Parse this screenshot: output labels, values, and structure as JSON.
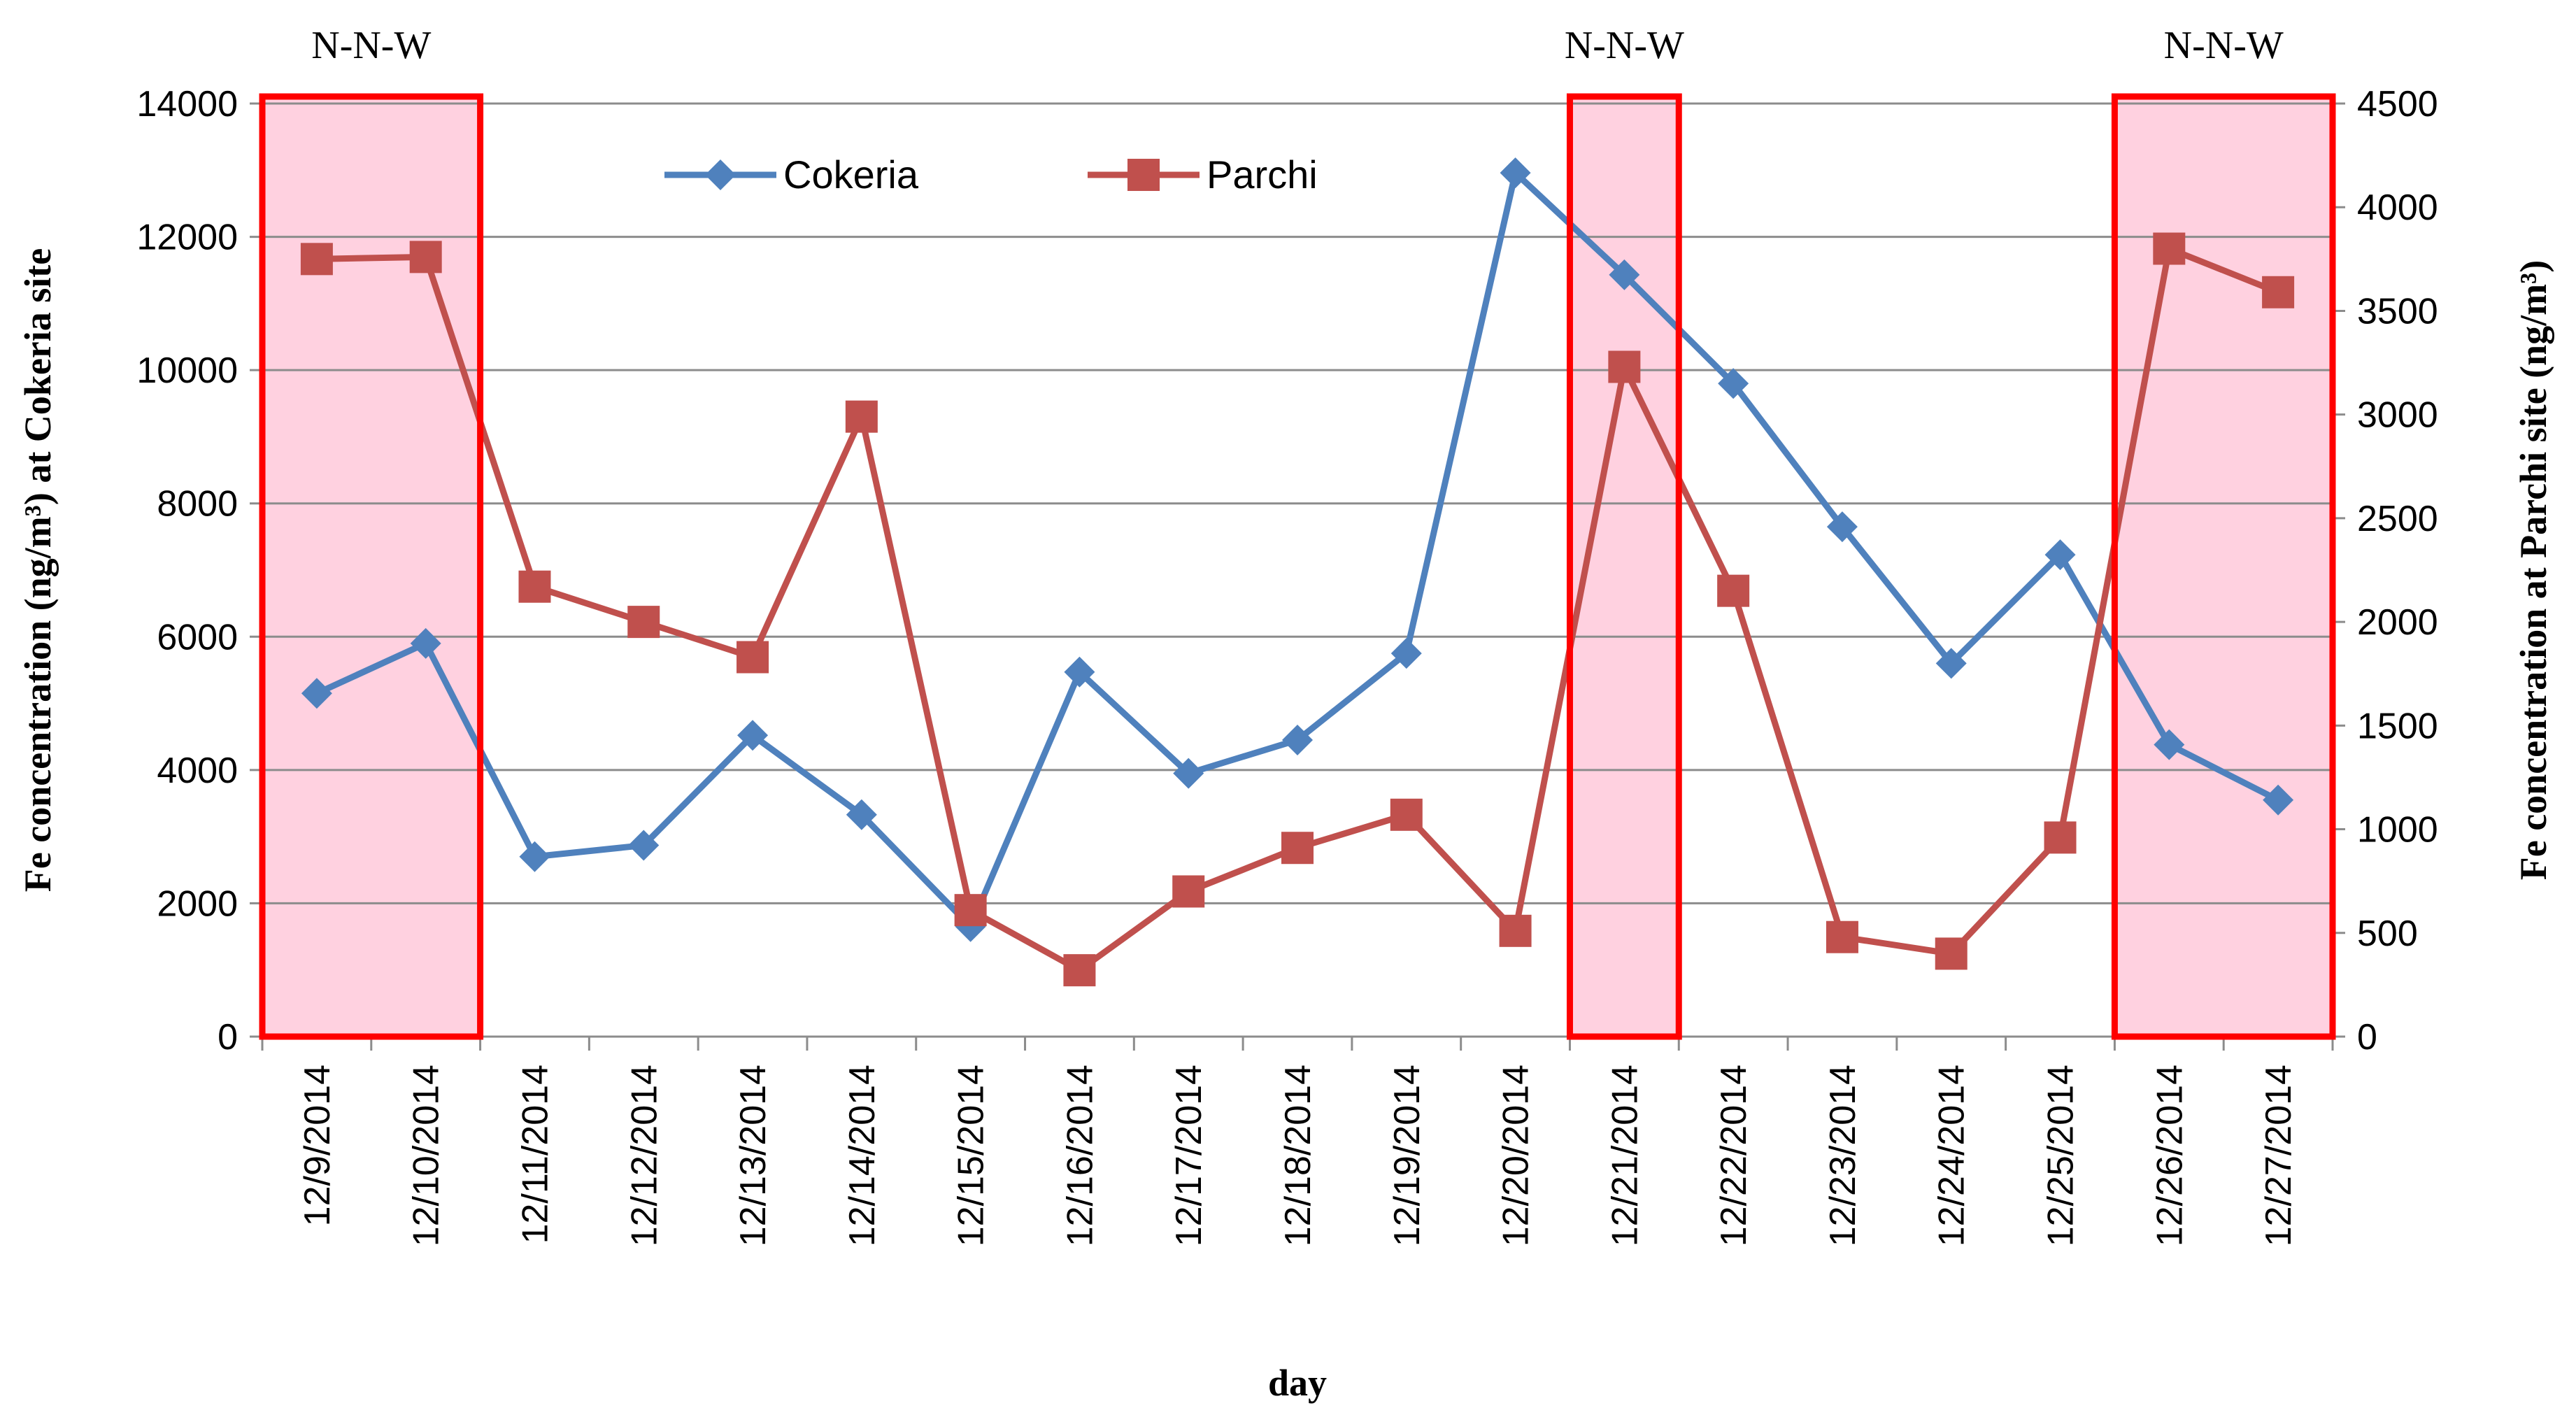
{
  "chart_data": {
    "type": "line",
    "categories": [
      "12/9/2014",
      "12/10/2014",
      "12/11/2014",
      "12/12/2014",
      "12/13/2014",
      "12/14/2014",
      "12/15/2014",
      "12/16/2014",
      "12/17/2014",
      "12/18/2014",
      "12/19/2014",
      "12/20/2014",
      "12/21/2014",
      "12/22/2014",
      "12/23/2014",
      "12/24/2014",
      "12/25/2014",
      "12/26/2014",
      "12/27/2014"
    ],
    "series": [
      {
        "name": "Cokeria",
        "axis": "left",
        "color": "#4F81BD",
        "marker": "diamond",
        "values": [
          5150,
          5900,
          2700,
          2870,
          4520,
          3330,
          1650,
          5470,
          3950,
          4450,
          5750,
          12960,
          11430,
          9800,
          7650,
          5600,
          7230,
          4380,
          3550
        ]
      },
      {
        "name": "Parchi",
        "axis": "right",
        "color": "#C0504D",
        "marker": "square",
        "values": [
          3750,
          3760,
          2170,
          2000,
          1830,
          2990,
          610,
          320,
          700,
          910,
          1070,
          510,
          3230,
          2150,
          480,
          400,
          960,
          3800,
          3590
        ]
      }
    ],
    "xlabel": "day",
    "ylabel_left": "Fe concentration (ng/m³) at Cokeria site",
    "ylabel_right": "Fe concentration at Parchi site (ng/m³)",
    "ylim_left": [
      0,
      14000
    ],
    "ylim_right": [
      0,
      4500
    ],
    "yticks_left": [
      0,
      2000,
      4000,
      6000,
      8000,
      10000,
      12000,
      14000
    ],
    "yticks_right": [
      0,
      500,
      1000,
      1500,
      2000,
      2500,
      3000,
      3500,
      4000,
      4500
    ],
    "grid": true,
    "legend_position": "top-left-center",
    "highlights": [
      {
        "label": "N-N-W",
        "from_category": "12/9/2014",
        "to_category": "12/10/2014"
      },
      {
        "label": "N-N-W",
        "from_category": "12/21/2014",
        "to_category": "12/21/2014"
      },
      {
        "label": "N-N-W",
        "from_category": "12/26/2014",
        "to_category": "12/27/2014"
      }
    ],
    "highlight_fill": "#FFD1E0",
    "highlight_stroke": "#FF0000"
  }
}
